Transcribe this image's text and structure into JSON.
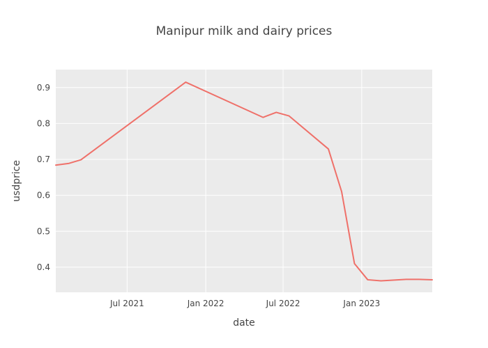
{
  "chart_data": {
    "type": "line",
    "title": "Manipur milk and dairy prices",
    "xlabel": "date",
    "ylabel": "usdprice",
    "x_tick_labels": [
      "Jul 2021",
      "Jan 2022",
      "Jul 2022",
      "Jan 2023"
    ],
    "y_tick_labels": [
      "0.4",
      "0.5",
      "0.6",
      "0.7",
      "0.8",
      "0.9"
    ],
    "x_ticks": [
      "2021-07-01",
      "2022-01-01",
      "2022-07-01",
      "2023-01-01"
    ],
    "y_ticks": [
      0.4,
      0.5,
      0.6,
      0.7,
      0.8,
      0.9
    ],
    "xlim": [
      "2021-01-15",
      "2023-06-15"
    ],
    "ylim": [
      0.33,
      0.95
    ],
    "grid": true,
    "colors": {
      "line": "#ef7069",
      "plot_background": "#ebebeb",
      "grid": "#ffffff"
    },
    "series": [
      {
        "x": [
          "2021-01-15",
          "2021-02-15",
          "2021-03-15",
          "2021-11-15",
          "2022-05-15",
          "2022-06-15",
          "2022-07-15",
          "2022-10-15",
          "2022-11-15",
          "2022-12-15",
          "2023-01-15",
          "2023-02-15",
          "2023-03-15",
          "2023-04-15",
          "2023-05-15",
          "2023-06-15"
        ],
        "y": [
          0.684,
          0.689,
          0.699,
          0.915,
          0.817,
          0.831,
          0.821,
          0.729,
          0.61,
          0.41,
          0.365,
          0.362,
          0.364,
          0.366,
          0.366,
          0.365
        ]
      }
    ]
  }
}
